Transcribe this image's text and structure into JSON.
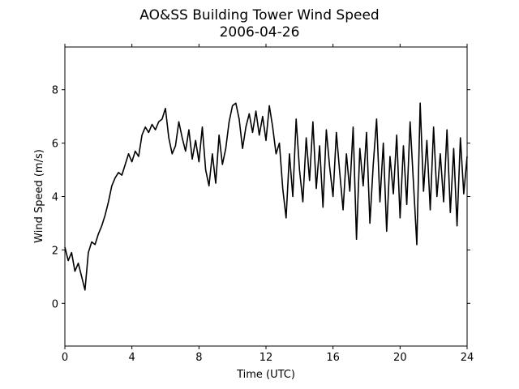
{
  "chart_data": {
    "type": "line",
    "title": "AO&SS Building Tower Wind Speed",
    "subtitle": "2006-04-26",
    "x_label": "Time (UTC)",
    "y_label": "Wind Speed (m/s)",
    "xlim": [
      0,
      24
    ],
    "xticks": [
      0,
      4,
      8,
      12,
      16,
      20,
      24
    ],
    "ylim": [
      -1.6,
      9.6
    ],
    "yticks": [
      0,
      2,
      4,
      6,
      8
    ],
    "grid": false,
    "x": [
      0,
      0.2,
      0.4,
      0.6,
      0.8,
      1.0,
      1.2,
      1.4,
      1.6,
      1.8,
      2.0,
      2.2,
      2.4,
      2.6,
      2.8,
      3.0,
      3.2,
      3.4,
      3.6,
      3.8,
      4.0,
      4.2,
      4.4,
      4.6,
      4.8,
      5.0,
      5.2,
      5.4,
      5.6,
      5.8,
      6.0,
      6.2,
      6.4,
      6.6,
      6.8,
      7.0,
      7.2,
      7.4,
      7.6,
      7.8,
      8.0,
      8.2,
      8.4,
      8.6,
      8.8,
      9.0,
      9.2,
      9.4,
      9.6,
      9.8,
      10.0,
      10.2,
      10.4,
      10.6,
      10.8,
      11.0,
      11.2,
      11.4,
      11.6,
      11.8,
      12.0,
      12.2,
      12.4,
      12.6,
      12.8,
      13.0,
      13.2,
      13.4,
      13.6,
      13.8,
      14.0,
      14.2,
      14.4,
      14.6,
      14.8,
      15.0,
      15.2,
      15.4,
      15.6,
      15.8,
      16.0,
      16.2,
      16.4,
      16.6,
      16.8,
      17.0,
      17.2,
      17.4,
      17.6,
      17.8,
      18.0,
      18.2,
      18.4,
      18.6,
      18.8,
      19.0,
      19.2,
      19.4,
      19.6,
      19.8,
      20.0,
      20.2,
      20.4,
      20.6,
      20.8,
      21.0,
      21.2,
      21.4,
      21.6,
      21.8,
      22.0,
      22.2,
      22.4,
      22.6,
      22.8,
      23.0,
      23.2,
      23.4,
      23.6,
      23.8,
      24.0
    ],
    "series": [
      {
        "name": "Wind Speed",
        "color": "#000000",
        "values": [
          2.1,
          1.6,
          1.9,
          1.2,
          1.5,
          1.0,
          0.5,
          1.9,
          2.3,
          2.2,
          2.6,
          2.9,
          3.3,
          3.8,
          4.4,
          4.7,
          4.9,
          4.8,
          5.2,
          5.6,
          5.3,
          5.7,
          5.5,
          6.3,
          6.6,
          6.4,
          6.7,
          6.5,
          6.8,
          6.9,
          7.3,
          6.2,
          5.6,
          5.9,
          6.8,
          6.2,
          5.7,
          6.5,
          5.4,
          6.1,
          5.3,
          6.6,
          5.0,
          4.4,
          5.6,
          4.5,
          6.3,
          5.2,
          5.8,
          6.8,
          7.4,
          7.5,
          6.9,
          5.8,
          6.6,
          7.1,
          6.4,
          7.2,
          6.3,
          7.0,
          6.1,
          7.4,
          6.6,
          5.6,
          6.0,
          4.3,
          3.2,
          5.6,
          4.0,
          6.9,
          5.0,
          3.8,
          6.2,
          4.6,
          6.8,
          4.3,
          5.9,
          3.6,
          6.5,
          5.1,
          4.0,
          6.4,
          4.9,
          3.5,
          5.6,
          4.2,
          6.6,
          2.4,
          5.8,
          4.4,
          6.4,
          3.0,
          5.2,
          6.9,
          3.8,
          6.0,
          2.7,
          5.5,
          4.1,
          6.3,
          3.2,
          5.9,
          3.7,
          6.8,
          4.5,
          2.2,
          7.5,
          4.2,
          6.1,
          3.5,
          6.6,
          4.0,
          5.6,
          3.8,
          6.5,
          3.4,
          5.8,
          2.9,
          6.2,
          4.1,
          5.5
        ]
      }
    ]
  }
}
